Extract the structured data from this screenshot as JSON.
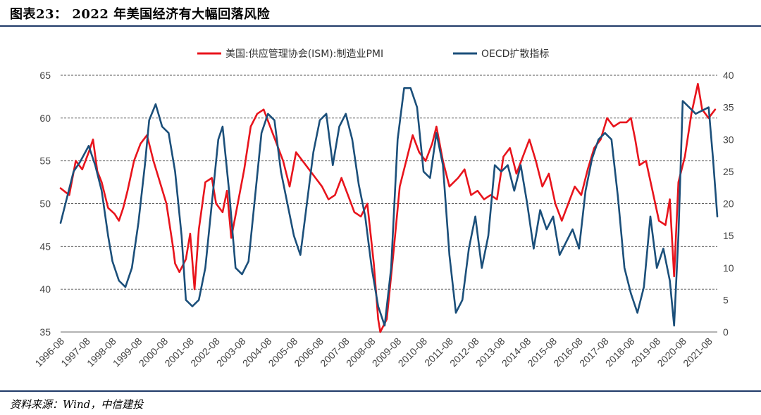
{
  "header": {
    "title": "图表23：    2022 年美国经济有大幅回落风险"
  },
  "footer": {
    "source": "资料来源：Wind，中信建投"
  },
  "chart_data": {
    "type": "line",
    "legend_position": "top-center",
    "grid": "horizontal-dashed",
    "x_ticks": [
      "1996-08",
      "1997-08",
      "1998-08",
      "1999-08",
      "2000-08",
      "2001-08",
      "2002-08",
      "2003-08",
      "2004-08",
      "2005-08",
      "2006-08",
      "2007-08",
      "2008-08",
      "2009-08",
      "2010-08",
      "2011-08",
      "2012-08",
      "2013-08",
      "2014-08",
      "2015-08",
      "2016-08",
      "2017-08",
      "2018-08",
      "2019-08",
      "2020-08",
      "2021-08"
    ],
    "x_range": [
      "1996-08",
      "2021-12"
    ],
    "y_left": {
      "min": 35,
      "max": 65,
      "ticks": [
        35,
        40,
        45,
        50,
        55,
        60,
        65
      ]
    },
    "y_right": {
      "min": 0,
      "max": 40,
      "ticks": [
        0,
        5,
        10,
        15,
        20,
        25,
        30,
        35,
        40
      ]
    },
    "series": [
      {
        "name": "美国:供应管理协会(ISM):制造业PMI",
        "axis": "left",
        "color": "#e8141c",
        "points": [
          [
            "1996-08",
            51.8
          ],
          [
            "1996-12",
            51.0
          ],
          [
            "1997-03",
            55.0
          ],
          [
            "1997-06",
            54.0
          ],
          [
            "1997-09",
            56.0
          ],
          [
            "1997-11",
            57.5
          ],
          [
            "1998-01",
            53.8
          ],
          [
            "1998-03",
            52.5
          ],
          [
            "1998-06",
            49.5
          ],
          [
            "1998-09",
            48.8
          ],
          [
            "1998-11",
            48.0
          ],
          [
            "1999-01",
            49.5
          ],
          [
            "1999-03",
            51.5
          ],
          [
            "1999-06",
            55.0
          ],
          [
            "1999-09",
            57.0
          ],
          [
            "1999-12",
            58.0
          ],
          [
            "2000-03",
            55.0
          ],
          [
            "2000-06",
            52.5
          ],
          [
            "2000-09",
            50.0
          ],
          [
            "2000-12",
            45.0
          ],
          [
            "2001-01",
            43.0
          ],
          [
            "2001-03",
            42.0
          ],
          [
            "2001-06",
            43.5
          ],
          [
            "2001-08",
            46.5
          ],
          [
            "2001-10",
            40.0
          ],
          [
            "2001-12",
            47.0
          ],
          [
            "2002-03",
            52.5
          ],
          [
            "2002-06",
            53.0
          ],
          [
            "2002-08",
            50.0
          ],
          [
            "2002-11",
            49.0
          ],
          [
            "2003-01",
            51.5
          ],
          [
            "2003-03",
            46.0
          ],
          [
            "2003-06",
            50.0
          ],
          [
            "2003-09",
            54.0
          ],
          [
            "2003-12",
            59.0
          ],
          [
            "2004-03",
            60.5
          ],
          [
            "2004-06",
            61.0
          ],
          [
            "2004-09",
            59.0
          ],
          [
            "2004-12",
            57.0
          ],
          [
            "2005-03",
            55.0
          ],
          [
            "2005-06",
            52.0
          ],
          [
            "2005-09",
            56.0
          ],
          [
            "2005-12",
            55.0
          ],
          [
            "2006-03",
            54.0
          ],
          [
            "2006-06",
            53.0
          ],
          [
            "2006-09",
            52.0
          ],
          [
            "2006-12",
            50.5
          ],
          [
            "2007-03",
            51.0
          ],
          [
            "2007-06",
            53.0
          ],
          [
            "2007-09",
            51.0
          ],
          [
            "2007-12",
            49.0
          ],
          [
            "2008-03",
            48.5
          ],
          [
            "2008-06",
            50.0
          ],
          [
            "2008-09",
            43.0
          ],
          [
            "2008-11",
            36.5
          ],
          [
            "2008-12",
            35.0
          ],
          [
            "2009-03",
            36.5
          ],
          [
            "2009-06",
            44.0
          ],
          [
            "2009-09",
            52.0
          ],
          [
            "2009-12",
            55.0
          ],
          [
            "2010-03",
            58.0
          ],
          [
            "2010-06",
            56.0
          ],
          [
            "2010-09",
            55.0
          ],
          [
            "2010-12",
            57.0
          ],
          [
            "2011-02",
            59.0
          ],
          [
            "2011-05",
            55.0
          ],
          [
            "2011-08",
            52.0
          ],
          [
            "2011-12",
            53.0
          ],
          [
            "2012-03",
            54.0
          ],
          [
            "2012-06",
            51.0
          ],
          [
            "2012-09",
            51.5
          ],
          [
            "2012-12",
            50.5
          ],
          [
            "2013-03",
            51.0
          ],
          [
            "2013-06",
            50.5
          ],
          [
            "2013-09",
            55.5
          ],
          [
            "2013-12",
            56.5
          ],
          [
            "2014-03",
            53.5
          ],
          [
            "2014-06",
            55.5
          ],
          [
            "2014-09",
            57.5
          ],
          [
            "2014-12",
            55.0
          ],
          [
            "2015-03",
            52.0
          ],
          [
            "2015-06",
            53.5
          ],
          [
            "2015-09",
            50.0
          ],
          [
            "2015-12",
            48.0
          ],
          [
            "2016-03",
            50.0
          ],
          [
            "2016-06",
            52.0
          ],
          [
            "2016-09",
            51.0
          ],
          [
            "2016-12",
            54.0
          ],
          [
            "2017-03",
            56.5
          ],
          [
            "2017-06",
            57.5
          ],
          [
            "2017-09",
            60.0
          ],
          [
            "2017-12",
            59.0
          ],
          [
            "2018-03",
            59.5
          ],
          [
            "2018-06",
            59.5
          ],
          [
            "2018-08",
            60.0
          ],
          [
            "2018-10",
            57.5
          ],
          [
            "2018-12",
            54.5
          ],
          [
            "2019-03",
            55.0
          ],
          [
            "2019-06",
            51.5
          ],
          [
            "2019-09",
            48.0
          ],
          [
            "2019-12",
            47.5
          ],
          [
            "2020-02",
            50.5
          ],
          [
            "2020-04",
            41.5
          ],
          [
            "2020-06",
            52.5
          ],
          [
            "2020-09",
            55.5
          ],
          [
            "2020-12",
            60.5
          ],
          [
            "2021-03",
            64.0
          ],
          [
            "2021-05",
            61.0
          ],
          [
            "2021-08",
            60.0
          ],
          [
            "2021-11",
            61.0
          ]
        ]
      },
      {
        "name": "OECD扩散指标",
        "axis": "right",
        "color": "#1b4f7a",
        "points": [
          [
            "1996-08",
            17.0
          ],
          [
            "1996-11",
            21.0
          ],
          [
            "1997-02",
            25.0
          ],
          [
            "1997-05",
            26.5
          ],
          [
            "1997-09",
            29.0
          ],
          [
            "1997-12",
            26.0
          ],
          [
            "1998-03",
            22.0
          ],
          [
            "1998-06",
            15.0
          ],
          [
            "1998-08",
            11.0
          ],
          [
            "1998-11",
            8.0
          ],
          [
            "1999-02",
            7.0
          ],
          [
            "1999-05",
            10.0
          ],
          [
            "1999-08",
            17.0
          ],
          [
            "1999-11",
            26.0
          ],
          [
            "2000-01",
            33.0
          ],
          [
            "2000-04",
            35.5
          ],
          [
            "2000-07",
            32.0
          ],
          [
            "2000-10",
            31.0
          ],
          [
            "2001-01",
            25.0
          ],
          [
            "2001-04",
            15.0
          ],
          [
            "2001-06",
            5.0
          ],
          [
            "2001-09",
            4.0
          ],
          [
            "2001-12",
            5.0
          ],
          [
            "2002-03",
            10.0
          ],
          [
            "2002-06",
            20.0
          ],
          [
            "2002-09",
            30.0
          ],
          [
            "2002-11",
            32.0
          ],
          [
            "2003-02",
            22.0
          ],
          [
            "2003-05",
            10.0
          ],
          [
            "2003-08",
            9.0
          ],
          [
            "2003-11",
            11.0
          ],
          [
            "2004-02",
            21.0
          ],
          [
            "2004-05",
            31.0
          ],
          [
            "2004-08",
            34.0
          ],
          [
            "2004-11",
            33.0
          ],
          [
            "2005-02",
            25.0
          ],
          [
            "2005-05",
            20.0
          ],
          [
            "2005-08",
            15.0
          ],
          [
            "2005-11",
            12.0
          ],
          [
            "2006-02",
            20.0
          ],
          [
            "2006-05",
            28.0
          ],
          [
            "2006-08",
            33.0
          ],
          [
            "2006-11",
            34.0
          ],
          [
            "2007-02",
            26.0
          ],
          [
            "2007-05",
            32.0
          ],
          [
            "2007-08",
            34.0
          ],
          [
            "2007-11",
            30.0
          ],
          [
            "2008-02",
            23.0
          ],
          [
            "2008-05",
            18.0
          ],
          [
            "2008-08",
            10.0
          ],
          [
            "2008-11",
            4.0
          ],
          [
            "2009-02",
            1.0
          ],
          [
            "2009-05",
            10.0
          ],
          [
            "2009-08",
            30.0
          ],
          [
            "2009-11",
            38.0
          ],
          [
            "2010-02",
            38.0
          ],
          [
            "2010-05",
            35.0
          ],
          [
            "2010-08",
            25.0
          ],
          [
            "2010-11",
            24.0
          ],
          [
            "2011-02",
            31.0
          ],
          [
            "2011-05",
            26.0
          ],
          [
            "2011-08",
            12.0
          ],
          [
            "2011-11",
            3.0
          ],
          [
            "2012-02",
            5.0
          ],
          [
            "2012-05",
            13.0
          ],
          [
            "2012-08",
            18.0
          ],
          [
            "2012-11",
            10.0
          ],
          [
            "2013-02",
            15.0
          ],
          [
            "2013-05",
            26.0
          ],
          [
            "2013-08",
            25.0
          ],
          [
            "2013-11",
            26.0
          ],
          [
            "2014-02",
            22.0
          ],
          [
            "2014-05",
            26.0
          ],
          [
            "2014-08",
            20.0
          ],
          [
            "2014-11",
            13.0
          ],
          [
            "2015-02",
            19.0
          ],
          [
            "2015-05",
            16.0
          ],
          [
            "2015-08",
            18.0
          ],
          [
            "2015-11",
            12.0
          ],
          [
            "2016-02",
            14.0
          ],
          [
            "2016-05",
            16.0
          ],
          [
            "2016-08",
            13.0
          ],
          [
            "2016-11",
            22.0
          ],
          [
            "2017-02",
            27.0
          ],
          [
            "2017-05",
            30.0
          ],
          [
            "2017-08",
            31.0
          ],
          [
            "2017-11",
            30.0
          ],
          [
            "2018-02",
            21.0
          ],
          [
            "2018-05",
            10.0
          ],
          [
            "2018-08",
            6.0
          ],
          [
            "2018-11",
            3.0
          ],
          [
            "2019-02",
            7.0
          ],
          [
            "2019-05",
            18.0
          ],
          [
            "2019-08",
            10.0
          ],
          [
            "2019-11",
            13.0
          ],
          [
            "2020-02",
            8.0
          ],
          [
            "2020-04",
            1.0
          ],
          [
            "2020-06",
            15.0
          ],
          [
            "2020-08",
            36.0
          ],
          [
            "2020-11",
            35.0
          ],
          [
            "2021-02",
            34.0
          ],
          [
            "2021-05",
            34.5
          ],
          [
            "2021-08",
            35.0
          ],
          [
            "2021-10",
            27.0
          ],
          [
            "2021-12",
            18.0
          ]
        ]
      }
    ]
  }
}
